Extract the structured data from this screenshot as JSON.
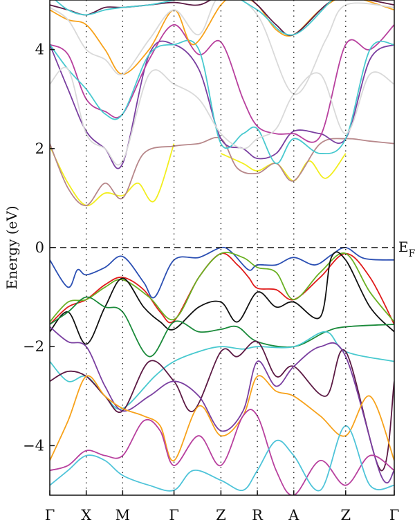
{
  "chart_data": {
    "type": "line",
    "title": "",
    "ylabel": "Energy (eV)",
    "xlabel": "",
    "ylim": [
      -5,
      5
    ],
    "yticks": [
      4,
      2,
      0,
      -2,
      -4
    ],
    "ytick_labels": [
      "4",
      "2",
      "0",
      "−2",
      "−4"
    ],
    "kpoint_labels": [
      "Γ",
      "X",
      "M",
      "Γ",
      "Z",
      "R",
      "A",
      "Z",
      "Γ"
    ],
    "kpoint_positions": [
      0,
      0.66,
      1.32,
      2.25,
      3.1,
      3.76,
      4.42,
      5.36,
      6.24
    ],
    "fermi_level": 0,
    "fermi_label_main": "E",
    "fermi_label_sub": "F",
    "grid": false,
    "legend": "none",
    "series": [
      {
        "color": "#2b4fb3",
        "x": [
          0,
          0.33,
          0.5,
          0.66,
          1.0,
          1.32,
          1.7,
          1.9,
          2.25,
          2.7,
          3.1,
          3.3,
          3.6,
          3.76,
          4.1,
          4.42,
          4.8,
          5.1,
          5.36,
          5.7,
          6.24
        ],
        "y": [
          -0.25,
          -0.8,
          -0.45,
          -0.55,
          -0.4,
          -0.18,
          -0.7,
          -1.0,
          -0.25,
          -0.2,
          0.0,
          -0.1,
          -0.45,
          -0.35,
          -0.35,
          -0.2,
          -0.35,
          -0.15,
          0.0,
          -0.22,
          -0.25
        ]
      },
      {
        "color": "#e01b1b",
        "x": [
          0,
          0.33,
          0.66,
          1.0,
          1.32,
          1.7,
          2.0,
          2.25,
          2.7,
          3.1,
          3.4,
          3.6,
          3.76,
          4.1,
          4.42,
          4.9,
          5.36,
          5.8,
          6.24
        ],
        "y": [
          -1.55,
          -1.2,
          -1.05,
          -0.75,
          -0.6,
          -0.85,
          -1.3,
          -1.48,
          -0.6,
          -0.12,
          -0.35,
          -0.6,
          -0.82,
          -0.85,
          -1.05,
          -0.6,
          -0.12,
          -0.6,
          -1.55
        ]
      },
      {
        "color": "#6ab023",
        "x": [
          0,
          0.33,
          0.66,
          1.0,
          1.32,
          1.8,
          2.25,
          2.7,
          3.1,
          3.5,
          3.76,
          4.1,
          4.42,
          4.9,
          5.36,
          5.8,
          6.24
        ],
        "y": [
          -1.5,
          -1.1,
          -1.05,
          -0.8,
          -0.65,
          -1.0,
          -1.45,
          -0.6,
          -0.12,
          -0.2,
          -0.4,
          -0.5,
          -1.05,
          -0.5,
          -0.12,
          -0.9,
          -1.5
        ]
      },
      {
        "color": "#111111",
        "x": [
          0,
          0.33,
          0.66,
          1.0,
          1.32,
          1.7,
          2.0,
          2.25,
          2.7,
          3.1,
          3.4,
          3.76,
          4.1,
          4.42,
          4.9,
          5.1,
          5.36,
          5.8,
          6.24
        ],
        "y": [
          -1.7,
          -1.3,
          -1.95,
          -1.2,
          -0.62,
          -1.2,
          -1.5,
          -1.65,
          -1.2,
          -1.1,
          -1.5,
          -0.9,
          -1.2,
          -1.1,
          -1.4,
          -0.2,
          -0.25,
          -1.2,
          -1.7
        ]
      },
      {
        "color": "#1a8a3a",
        "x": [
          0,
          0.33,
          0.66,
          1.0,
          1.32,
          1.8,
          2.25,
          2.7,
          3.1,
          3.4,
          3.76,
          4.42,
          5.0,
          5.36,
          6.24
        ],
        "y": [
          -1.55,
          -1.3,
          -1.0,
          -1.2,
          -1.3,
          -2.2,
          -1.5,
          -1.7,
          -1.65,
          -1.6,
          -1.9,
          -2.0,
          -1.7,
          -1.6,
          -1.55
        ]
      },
      {
        "color": "#48c9cf",
        "x": [
          0,
          0.33,
          0.66,
          1.0,
          1.32,
          1.9,
          2.25,
          2.7,
          3.1,
          3.5,
          3.76,
          4.42,
          5.0,
          5.36,
          6.24
        ],
        "y": [
          -2.3,
          -2.7,
          -2.6,
          -3.0,
          -3.25,
          -2.6,
          -2.3,
          -2.1,
          -2.0,
          -2.05,
          -2.0,
          -2.0,
          -1.7,
          -2.1,
          -2.3
        ]
      },
      {
        "color": "#5c1a44",
        "x": [
          0,
          0.33,
          0.66,
          1.0,
          1.32,
          1.8,
          2.25,
          2.6,
          3.1,
          3.4,
          3.76,
          4.1,
          4.42,
          5.0,
          5.36,
          6.0,
          6.24
        ],
        "y": [
          -2.7,
          -2.5,
          -2.6,
          -3.0,
          -3.3,
          -2.3,
          -2.7,
          -3.3,
          -2.1,
          -2.2,
          -1.9,
          -2.6,
          -2.4,
          -3.0,
          -2.1,
          -4.5,
          -2.7
        ]
      },
      {
        "color": "#7a3fa0",
        "x": [
          0,
          0.33,
          0.66,
          1.0,
          1.32,
          1.8,
          2.25,
          2.7,
          3.1,
          3.5,
          3.76,
          4.1,
          4.42,
          4.9,
          5.36,
          6.0,
          6.24
        ],
        "y": [
          -1.6,
          -1.9,
          -2.0,
          -2.8,
          -3.3,
          -3.0,
          -2.7,
          -3.0,
          -3.7,
          -3.3,
          -2.3,
          -2.8,
          -2.4,
          -2.0,
          -2.2,
          -4.6,
          -4.5
        ]
      },
      {
        "color": "#f7a21b",
        "x": [
          0,
          0.33,
          0.66,
          1.0,
          1.32,
          1.7,
          2.0,
          2.25,
          2.7,
          3.1,
          3.5,
          3.76,
          4.1,
          4.42,
          4.9,
          5.36,
          5.8,
          6.24
        ],
        "y": [
          -4.3,
          -3.5,
          -2.6,
          -3.0,
          -3.25,
          -3.4,
          -3.6,
          -4.3,
          -3.2,
          -3.8,
          -3.4,
          -2.6,
          -2.9,
          -3.0,
          -3.4,
          -3.8,
          -3.0,
          -4.3
        ]
      },
      {
        "color": "#b8409e",
        "x": [
          0,
          0.33,
          0.66,
          1.0,
          1.32,
          1.7,
          2.0,
          2.25,
          2.7,
          3.1,
          3.5,
          3.76,
          4.1,
          4.42,
          4.9,
          5.36,
          5.8,
          6.24
        ],
        "y": [
          -4.5,
          -4.4,
          -4.1,
          -4.2,
          -4.2,
          -3.5,
          -3.7,
          -4.4,
          -3.8,
          -4.4,
          -3.4,
          -3.4,
          -4.5,
          -5.0,
          -4.3,
          -4.8,
          -4.2,
          -4.5
        ]
      },
      {
        "color": "#4fc4d9",
        "x": [
          0,
          0.33,
          0.66,
          1.0,
          1.32,
          1.8,
          2.25,
          2.6,
          3.1,
          3.5,
          3.76,
          4.1,
          4.42,
          4.9,
          5.36,
          5.8,
          6.24
        ],
        "y": [
          -4.8,
          -4.5,
          -4.2,
          -4.3,
          -4.6,
          -4.8,
          -4.9,
          -4.5,
          -4.7,
          -4.9,
          -4.5,
          -3.9,
          -4.2,
          -4.9,
          -3.6,
          -4.8,
          -4.8
        ]
      },
      {
        "color": "#f2ee1e",
        "x": [
          0,
          0.33,
          0.66,
          1.0,
          1.32,
          1.6,
          1.9,
          2.25
        ],
        "y": [
          2.05,
          1.3,
          0.85,
          1.1,
          1.05,
          1.3,
          0.95,
          2.1
        ]
      },
      {
        "color": "#f2ee1e",
        "x": [
          3.1,
          3.5,
          3.76,
          4.1,
          4.42,
          4.7,
          5.0,
          5.36
        ],
        "y": [
          1.9,
          1.7,
          1.55,
          1.7,
          1.35,
          1.75,
          1.4,
          1.9
        ]
      },
      {
        "color": "#b7878a",
        "x": [
          0,
          0.33,
          0.66,
          1.0,
          1.32,
          1.7,
          2.25,
          2.7,
          3.1,
          3.4,
          3.76,
          4.1,
          4.42,
          4.9,
          5.36,
          5.8,
          6.24
        ],
        "y": [
          2.1,
          1.2,
          0.85,
          1.3,
          1.0,
          1.9,
          2.05,
          2.1,
          2.2,
          1.6,
          1.5,
          1.7,
          1.35,
          2.1,
          2.2,
          2.15,
          2.1
        ]
      },
      {
        "color": "#7a3fa0",
        "x": [
          0,
          0.33,
          0.66,
          1.0,
          1.32,
          1.8,
          2.25,
          2.7,
          3.1,
          3.5,
          3.76,
          4.1,
          4.42,
          4.9,
          5.36,
          5.8,
          6.24
        ],
        "y": [
          4.1,
          3.2,
          2.35,
          2.0,
          1.7,
          3.9,
          4.1,
          3.6,
          2.2,
          2.0,
          1.8,
          1.9,
          2.35,
          2.3,
          2.2,
          3.8,
          4.1
        ]
      },
      {
        "color": "#b8409e",
        "x": [
          0,
          0.33,
          0.66,
          1.0,
          1.32,
          1.8,
          2.25,
          2.7,
          3.1,
          3.5,
          3.76,
          4.1,
          4.42,
          4.9,
          5.36,
          5.8,
          6.24
        ],
        "y": [
          4.1,
          3.9,
          3.0,
          2.75,
          2.7,
          3.8,
          4.5,
          3.9,
          4.15,
          3.0,
          2.45,
          2.3,
          2.3,
          2.25,
          4.1,
          4.0,
          4.5
        ]
      },
      {
        "color": "#48c9cf",
        "x": [
          0,
          0.33,
          0.66,
          1.0,
          1.32,
          1.8,
          2.25,
          2.7,
          3.1,
          3.5,
          3.76,
          4.1,
          4.42,
          4.9,
          5.36,
          5.8,
          6.24
        ],
        "y": [
          4.1,
          3.6,
          3.2,
          2.7,
          2.7,
          3.9,
          4.1,
          4.0,
          2.1,
          2.3,
          2.4,
          1.7,
          2.2,
          1.9,
          2.2,
          4.0,
          4.1
        ]
      },
      {
        "color": "#d9d9d9",
        "x": [
          0,
          0.33,
          0.66,
          1.0,
          1.32,
          1.8,
          2.25,
          2.7,
          3.1,
          3.5,
          3.76,
          4.1,
          4.42,
          4.9,
          5.36,
          5.8,
          6.24
        ],
        "y": [
          3.3,
          3.6,
          2.3,
          2.0,
          1.75,
          3.5,
          3.3,
          3.0,
          2.3,
          2.0,
          2.2,
          2.4,
          3.1,
          3.5,
          2.3,
          3.5,
          3.3
        ]
      },
      {
        "color": "#f7a21b",
        "x": [
          0,
          0.33,
          0.66,
          1.0,
          1.32,
          1.8,
          2.25,
          2.6,
          3.1,
          3.4,
          3.76,
          4.1,
          4.42,
          4.9,
          5.36,
          5.7,
          6.24
        ],
        "y": [
          4.8,
          4.6,
          4.5,
          4.0,
          3.5,
          4.0,
          4.8,
          4.1,
          4.9,
          5.1,
          4.9,
          4.4,
          4.3,
          4.8,
          5.1,
          5.0,
          4.8
        ]
      },
      {
        "color": "#d9d9d9",
        "x": [
          0,
          0.33,
          0.66,
          1.0,
          1.32,
          1.8,
          2.25,
          2.7,
          3.1,
          3.76,
          4.42,
          5.0,
          5.36,
          6.24
        ],
        "y": [
          4.85,
          4.6,
          4.0,
          3.8,
          3.5,
          4.2,
          4.8,
          4.3,
          5.1,
          4.7,
          3.1,
          4.2,
          4.9,
          4.85
        ]
      },
      {
        "color": "#5c1a44",
        "x": [
          0,
          0.33,
          0.66,
          1.0,
          1.32,
          1.8,
          2.25,
          2.7,
          3.1,
          3.5,
          3.76,
          4.1,
          4.42,
          5.0,
          5.36,
          5.8,
          6.24
        ],
        "y": [
          4.9,
          4.8,
          4.7,
          4.85,
          4.85,
          4.9,
          4.95,
          4.9,
          5.1,
          5.1,
          4.9,
          4.5,
          4.3,
          4.9,
          5.1,
          5.0,
          4.9
        ]
      },
      {
        "color": "#48c9cf",
        "x": [
          0,
          0.33,
          0.66,
          1.0,
          1.32,
          1.8,
          2.25,
          2.7,
          3.1,
          3.76,
          4.42,
          5.36,
          6.24
        ],
        "y": [
          5.1,
          4.8,
          4.7,
          4.8,
          4.85,
          4.9,
          5.0,
          5.1,
          5.2,
          4.8,
          4.3,
          5.2,
          5.1
        ]
      }
    ]
  }
}
